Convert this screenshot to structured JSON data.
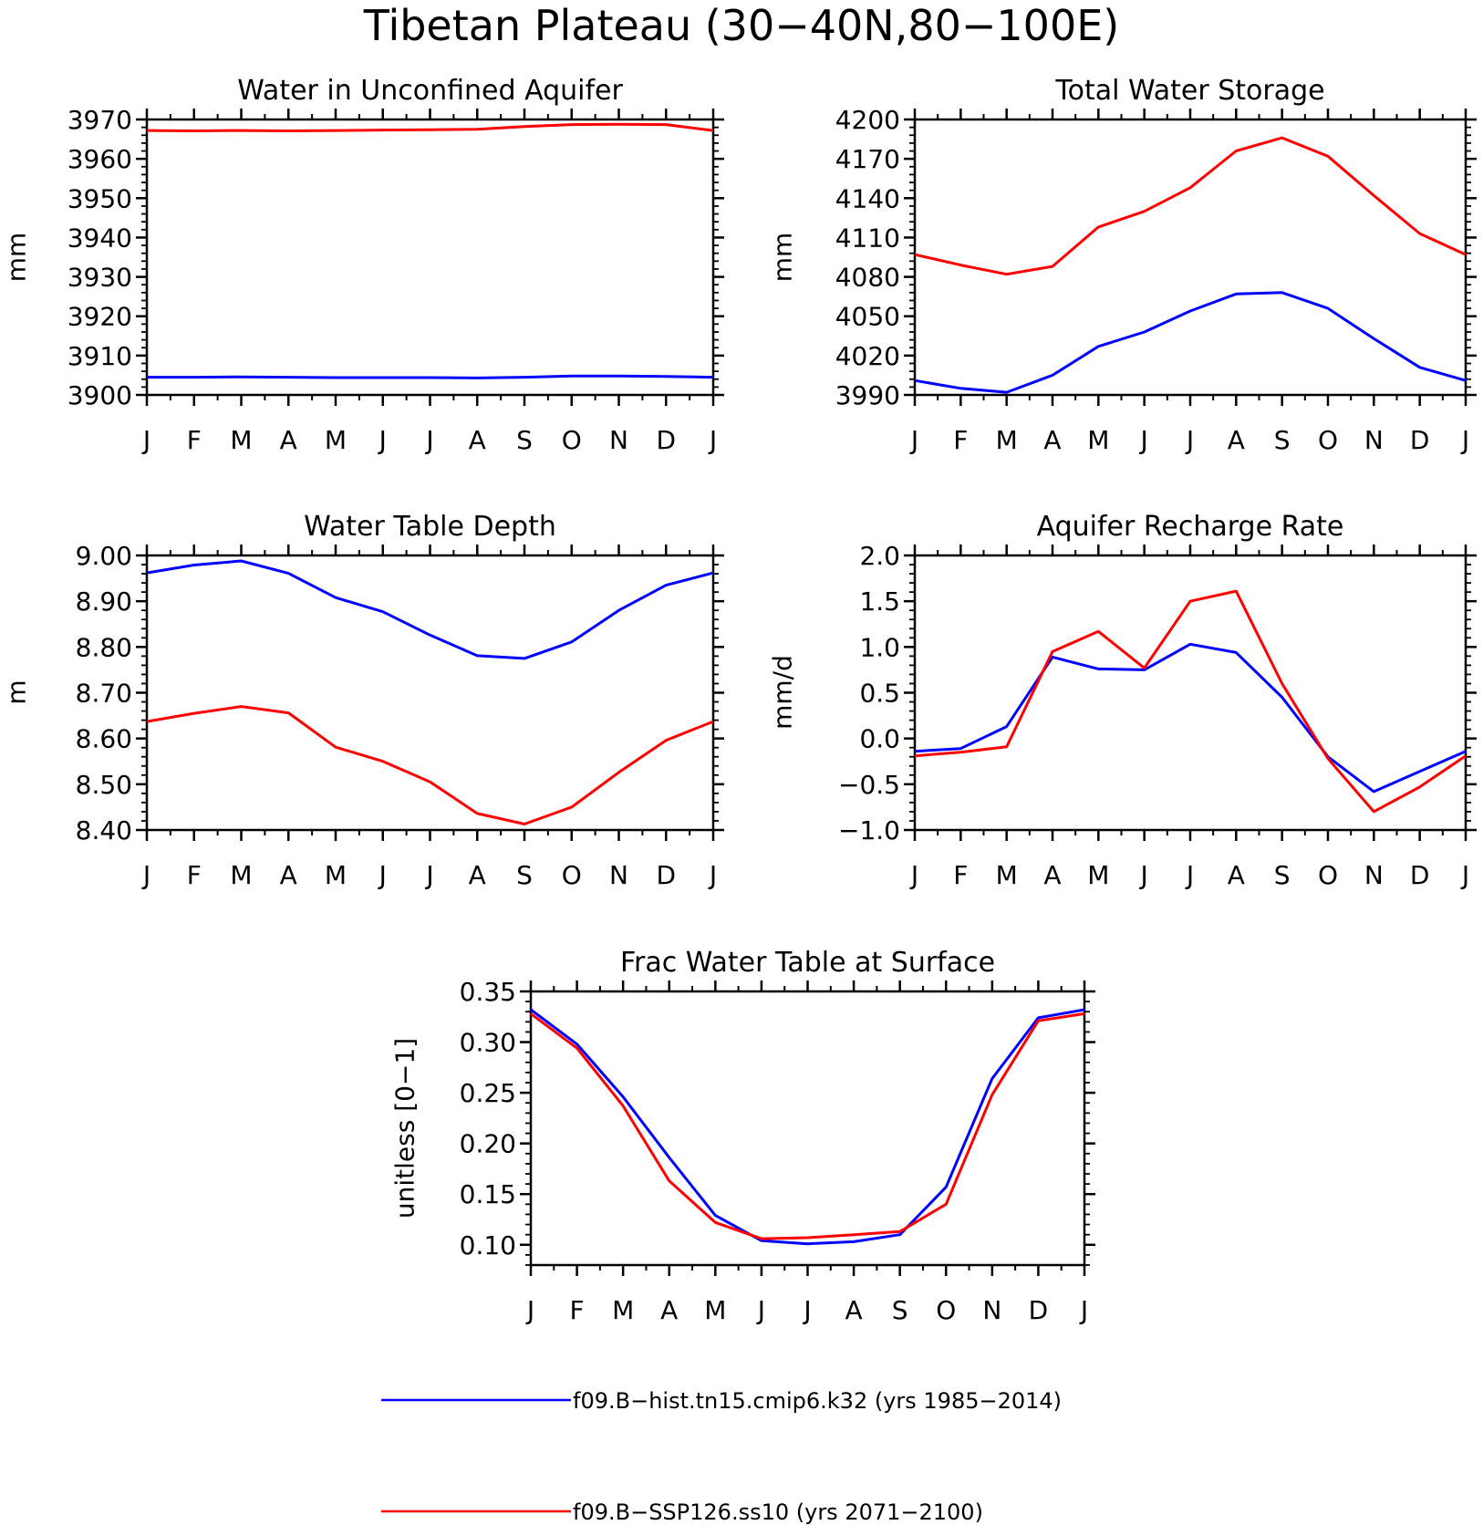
{
  "figure": {
    "title": "Tibetan Plateau (30−40N,80−100E)"
  },
  "colors": {
    "hist": "#0000ff",
    "ssp": "#ff0000",
    "axes": "#000000"
  },
  "legend": [
    {
      "label": "f09.B−hist.tn15.cmip6.k32 (yrs 1985−2014)",
      "color": "#0000ff"
    },
    {
      "label": "f09.B−SSP126.ss10 (yrs 2071−2100)",
      "color": "#ff0000"
    }
  ],
  "chart_data": [
    {
      "type": "line",
      "title": "Water in Unconfined Aquifer",
      "xlabel": "",
      "ylabel": "mm",
      "categories": [
        "J",
        "F",
        "M",
        "A",
        "M",
        "J",
        "J",
        "A",
        "S",
        "O",
        "N",
        "D",
        "J"
      ],
      "ylim": [
        3900,
        3970
      ],
      "yticks": [
        3900,
        3910,
        3920,
        3930,
        3940,
        3950,
        3960,
        3970
      ],
      "ytick_labels": [
        "3900",
        "3910",
        "3920",
        "3930",
        "3940",
        "3950",
        "3960",
        "3970"
      ],
      "grid": false,
      "series": [
        {
          "key": "hist",
          "values": [
            3904.5,
            3904.5,
            3904.6,
            3904.5,
            3904.4,
            3904.4,
            3904.4,
            3904.3,
            3904.5,
            3904.8,
            3904.8,
            3904.7,
            3904.5
          ]
        },
        {
          "key": "ssp",
          "values": [
            3967.2,
            3967.1,
            3967.2,
            3967.1,
            3967.2,
            3967.3,
            3967.4,
            3967.5,
            3968.2,
            3968.7,
            3968.8,
            3968.7,
            3967.2
          ]
        }
      ]
    },
    {
      "type": "line",
      "title": "Total Water Storage",
      "xlabel": "",
      "ylabel": "mm",
      "categories": [
        "J",
        "F",
        "M",
        "A",
        "M",
        "J",
        "J",
        "A",
        "S",
        "O",
        "N",
        "D",
        "J"
      ],
      "ylim": [
        3990,
        4200
      ],
      "yticks": [
        3990,
        4020,
        4050,
        4080,
        4110,
        4140,
        4170,
        4200
      ],
      "ytick_labels": [
        "3990",
        "4020",
        "4050",
        "4080",
        "4110",
        "4140",
        "4170",
        "4200"
      ],
      "grid": false,
      "series": [
        {
          "key": "hist",
          "values": [
            4001,
            3995,
            3992,
            4005,
            4027,
            4038,
            4054,
            4067,
            4068,
            4056,
            4033,
            4011,
            4001
          ]
        },
        {
          "key": "ssp",
          "values": [
            4097,
            4089,
            4082,
            4088,
            4118,
            4130,
            4148,
            4176,
            4186,
            4172,
            4142,
            4113,
            4097
          ]
        }
      ]
    },
    {
      "type": "line",
      "title": "Water Table Depth",
      "xlabel": "",
      "ylabel": "m",
      "categories": [
        "J",
        "F",
        "M",
        "A",
        "M",
        "J",
        "J",
        "A",
        "S",
        "O",
        "N",
        "D",
        "J"
      ],
      "ylim": [
        8.4,
        9.0
      ],
      "yticks": [
        8.4,
        8.5,
        8.6,
        8.7,
        8.8,
        8.9,
        9.0
      ],
      "ytick_labels": [
        "8.40",
        "8.50",
        "8.60",
        "8.70",
        "8.80",
        "8.90",
        "9.00"
      ],
      "grid": false,
      "series": [
        {
          "key": "hist",
          "values": [
            8.962,
            8.979,
            8.988,
            8.961,
            8.908,
            8.877,
            8.826,
            8.781,
            8.775,
            8.811,
            8.88,
            8.935,
            8.962
          ]
        },
        {
          "key": "ssp",
          "values": [
            8.637,
            8.655,
            8.67,
            8.656,
            8.581,
            8.55,
            8.505,
            8.436,
            8.413,
            8.45,
            8.526,
            8.596,
            8.637
          ]
        }
      ]
    },
    {
      "type": "line",
      "title": "Aquifer Recharge Rate",
      "xlabel": "",
      "ylabel": "mm/d",
      "categories": [
        "J",
        "F",
        "M",
        "A",
        "M",
        "J",
        "J",
        "A",
        "S",
        "O",
        "N",
        "D",
        "J"
      ],
      "ylim": [
        -1.0,
        2.0
      ],
      "yticks": [
        -1.0,
        -0.5,
        0.0,
        0.5,
        1.0,
        1.5,
        2.0
      ],
      "ytick_labels": [
        "−1.0",
        "−0.5",
        "0.0",
        "0.5",
        "1.0",
        "1.5",
        "2.0"
      ],
      "grid": false,
      "series": [
        {
          "key": "hist",
          "values": [
            -0.14,
            -0.11,
            0.13,
            0.89,
            0.76,
            0.75,
            1.03,
            0.94,
            0.45,
            -0.2,
            -0.58,
            -0.36,
            -0.14
          ]
        },
        {
          "key": "ssp",
          "values": [
            -0.19,
            -0.15,
            -0.09,
            0.95,
            1.17,
            0.77,
            1.5,
            1.61,
            0.6,
            -0.22,
            -0.8,
            -0.53,
            -0.19
          ]
        }
      ]
    },
    {
      "type": "line",
      "title": "Frac Water Table at Surface",
      "xlabel": "",
      "ylabel": "unitless [0−1]",
      "categories": [
        "J",
        "F",
        "M",
        "A",
        "M",
        "J",
        "J",
        "A",
        "S",
        "O",
        "N",
        "D",
        "J"
      ],
      "ylim": [
        0.08,
        0.35
      ],
      "yticks": [
        0.1,
        0.15,
        0.2,
        0.25,
        0.3,
        0.35
      ],
      "ytick_labels": [
        "0.10",
        "0.15",
        "0.20",
        "0.25",
        "0.30",
        "0.35"
      ],
      "grid": false,
      "series": [
        {
          "key": "hist",
          "values": [
            0.332,
            0.298,
            0.246,
            0.186,
            0.129,
            0.104,
            0.101,
            0.103,
            0.11,
            0.157,
            0.264,
            0.324,
            0.332
          ]
        },
        {
          "key": "ssp",
          "values": [
            0.328,
            0.294,
            0.237,
            0.163,
            0.122,
            0.106,
            0.107,
            0.11,
            0.113,
            0.14,
            0.248,
            0.321,
            0.328
          ]
        }
      ]
    }
  ]
}
